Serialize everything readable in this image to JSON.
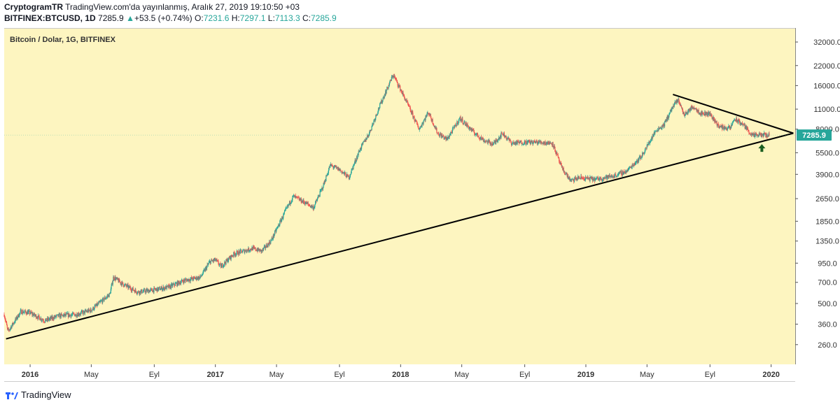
{
  "header": {
    "publisher": "CryptogramTR",
    "published_line": "TradingView.com'da yayınlanmış, Aralık 27, 2019 19:10:50 +03",
    "symbol": "BITFINEX:BTCUSD, 1D",
    "last": "7285.9",
    "change": "+53.5 (+0.74%)",
    "o_label": "O:",
    "o_value": "7231.6",
    "h_label": "H:",
    "h_value": "7297.1",
    "l_label": "L:",
    "l_value": "7113.3",
    "c_label": "C:",
    "c_value": "7285.9"
  },
  "footer": {
    "brand": "TradingView"
  },
  "colors": {
    "up": "#26a69a",
    "down": "#ef5350",
    "background": "#fdf5c0",
    "price_tag": "#26a69a",
    "arrow": "#1b5e20"
  },
  "chart_data": {
    "type": "candlestick",
    "title": "Bitcoin / Dolar, 1G, BITFINEX",
    "scale": "log",
    "ylim": [
      190,
      40000
    ],
    "y_ticks": [
      32000,
      22000,
      16000,
      11000,
      8000,
      5500,
      3900,
      2650,
      1850,
      1350,
      950,
      700,
      500,
      360,
      260
    ],
    "y_tick_labels": [
      "32000.0",
      "22000.0",
      "16000.0",
      "11000.0",
      "8000.0",
      "5500.0",
      "3900.0",
      "2650.0",
      "1850.0",
      "1350.0",
      "950.0",
      "700.0",
      "500.0",
      "360.0",
      "260.0"
    ],
    "x_ticks": [
      2016.0,
      2016.33,
      2016.67,
      2017.0,
      2017.33,
      2017.67,
      2018.0,
      2018.33,
      2018.67,
      2019.0,
      2019.33,
      2019.67,
      2020.0
    ],
    "x_tick_labels": [
      "2016",
      "May",
      "Eyl",
      "2017",
      "May",
      "Eyl",
      "2018",
      "May",
      "Eyl",
      "2019",
      "May",
      "Eyl",
      "2020"
    ],
    "xlim": [
      2015.86,
      2020.13
    ],
    "last_price": 7285.9,
    "last_price_label": "7285.9",
    "price_path": [
      [
        2015.86,
        420
      ],
      [
        2015.88,
        320
      ],
      [
        2015.95,
        440
      ],
      [
        2016.0,
        430
      ],
      [
        2016.08,
        380
      ],
      [
        2016.15,
        410
      ],
      [
        2016.25,
        420
      ],
      [
        2016.33,
        450
      ],
      [
        2016.43,
        580
      ],
      [
        2016.45,
        760
      ],
      [
        2016.5,
        680
      ],
      [
        2016.58,
        600
      ],
      [
        2016.67,
        620
      ],
      [
        2016.75,
        650
      ],
      [
        2016.83,
        720
      ],
      [
        2016.92,
        760
      ],
      [
        2016.97,
        970
      ],
      [
        2017.0,
        1000
      ],
      [
        2017.03,
        900
      ],
      [
        2017.1,
        1100
      ],
      [
        2017.2,
        1200
      ],
      [
        2017.25,
        1150
      ],
      [
        2017.3,
        1350
      ],
      [
        2017.38,
        2200
      ],
      [
        2017.42,
        2750
      ],
      [
        2017.48,
        2500
      ],
      [
        2017.53,
        2300
      ],
      [
        2017.58,
        3200
      ],
      [
        2017.62,
        4500
      ],
      [
        2017.67,
        4200
      ],
      [
        2017.72,
        3700
      ],
      [
        2017.78,
        5800
      ],
      [
        2017.83,
        7500
      ],
      [
        2017.88,
        11000
      ],
      [
        2017.92,
        14500
      ],
      [
        2017.96,
        19000
      ],
      [
        2018.0,
        15000
      ],
      [
        2018.05,
        11000
      ],
      [
        2018.1,
        8000
      ],
      [
        2018.15,
        10500
      ],
      [
        2018.2,
        7500
      ],
      [
        2018.25,
        6800
      ],
      [
        2018.32,
        9500
      ],
      [
        2018.4,
        7500
      ],
      [
        2018.45,
        6700
      ],
      [
        2018.5,
        6300
      ],
      [
        2018.55,
        7500
      ],
      [
        2018.6,
        6400
      ],
      [
        2018.67,
        6500
      ],
      [
        2018.75,
        6500
      ],
      [
        2018.82,
        6400
      ],
      [
        2018.87,
        4300
      ],
      [
        2018.92,
        3500
      ],
      [
        2018.96,
        3700
      ],
      [
        2019.05,
        3600
      ],
      [
        2019.15,
        3800
      ],
      [
        2019.22,
        4100
      ],
      [
        2019.3,
        5200
      ],
      [
        2019.38,
        7900
      ],
      [
        2019.42,
        8500
      ],
      [
        2019.47,
        11500
      ],
      [
        2019.5,
        12800
      ],
      [
        2019.53,
        10000
      ],
      [
        2019.58,
        11500
      ],
      [
        2019.62,
        10300
      ],
      [
        2019.67,
        10200
      ],
      [
        2019.72,
        8300
      ],
      [
        2019.78,
        8100
      ],
      [
        2019.8,
        9400
      ],
      [
        2019.85,
        8600
      ],
      [
        2019.9,
        7200
      ],
      [
        2019.95,
        7300
      ],
      [
        2019.99,
        7285.9
      ]
    ],
    "trendlines": [
      {
        "name": "support",
        "points": [
          [
            2015.87,
            285
          ],
          [
            2020.12,
            7500
          ]
        ]
      },
      {
        "name": "resistance",
        "points": [
          [
            2019.47,
            13900
          ],
          [
            2020.12,
            7500
          ]
        ]
      }
    ],
    "annotations": [
      {
        "type": "arrow-up",
        "x": 2019.95,
        "y": 5900
      }
    ]
  }
}
